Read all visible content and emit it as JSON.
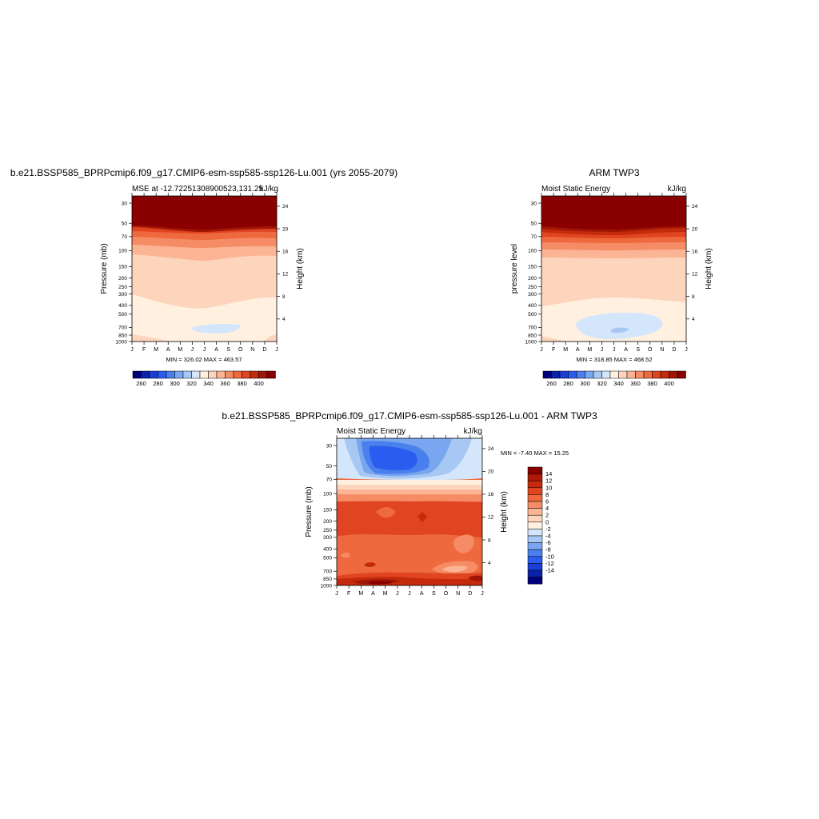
{
  "chart_data": [
    {
      "id": "model",
      "type": "heatmap",
      "title": "b.e21.BSSP585_BPRPcmip6.f09_g17.CMIP6-esm-ssp585-ssp126-Lu.001 (yrs 2055-2079)",
      "subtitle_left": "MSE at -12.72251308900523,131.25",
      "subtitle_right": "kJ/kg",
      "ylabel": "Pressure (mb)",
      "ylabel_right": "Height (km)",
      "x_ticks": [
        "J",
        "F",
        "M",
        "A",
        "M",
        "J",
        "J",
        "A",
        "S",
        "O",
        "N",
        "D",
        "J"
      ],
      "y_ticks": [
        "30",
        "50",
        "70",
        "100",
        "150",
        "200",
        "250",
        "300",
        "400",
        "500",
        "700",
        "850",
        "1000"
      ],
      "y_ticks_right": [
        "24",
        "20",
        "16",
        "12",
        "8",
        "4"
      ],
      "stats": "MIN = 326.02 MAX = 463.57",
      "colorbar_labels": [
        "260",
        "280",
        "300",
        "320",
        "340",
        "360",
        "380",
        "400"
      ],
      "contour_levels_kJkg": [
        250,
        260,
        270,
        280,
        290,
        300,
        310,
        320,
        330,
        340,
        350,
        360,
        370,
        380,
        390,
        400,
        410
      ]
    },
    {
      "id": "obs",
      "type": "heatmap",
      "title": "ARM TWP3",
      "subtitle_left": "Moist Static Energy",
      "subtitle_right": "kJ/kg",
      "ylabel": "pressure level",
      "ylabel_right": "Height (km)",
      "x_ticks": [
        "J",
        "F",
        "M",
        "A",
        "M",
        "J",
        "J",
        "A",
        "S",
        "O",
        "N",
        "D",
        "J"
      ],
      "y_ticks": [
        "30",
        "50",
        "70",
        "100",
        "150",
        "200",
        "250",
        "300",
        "400",
        "500",
        "700",
        "850",
        "1000"
      ],
      "y_ticks_right": [
        "24",
        "20",
        "16",
        "12",
        "8",
        "4"
      ],
      "stats": "MIN = 318.85 MAX = 468.52",
      "colorbar_labels": [
        "260",
        "280",
        "300",
        "320",
        "340",
        "360",
        "380",
        "400"
      ],
      "contour_levels_kJkg": [
        250,
        260,
        270,
        280,
        290,
        300,
        310,
        320,
        330,
        340,
        350,
        360,
        370,
        380,
        390,
        400,
        410
      ]
    },
    {
      "id": "diff",
      "type": "heatmap",
      "title": "b.e21.BSSP585_BPRPcmip6.f09_g17.CMIP6-esm-ssp585-ssp126-Lu.001 - ARM TWP3",
      "subtitle_left": "Moist Static Energy",
      "subtitle_right": "kJ/kg",
      "ylabel": "Pressure (mb)",
      "ylabel_right": "Height (km)",
      "x_ticks": [
        "J",
        "F",
        "M",
        "A",
        "M",
        "J",
        "J",
        "A",
        "S",
        "O",
        "N",
        "D",
        "J"
      ],
      "y_ticks": [
        "30",
        "50",
        "70",
        "100",
        "150",
        "200",
        "250",
        "300",
        "400",
        "500",
        "700",
        "850",
        "1000"
      ],
      "y_ticks_right": [
        "24",
        "20",
        "16",
        "12",
        "8",
        "4"
      ],
      "stats": "MIN =  -7.40 MAX =  15.25",
      "colorbar_labels": [
        "14",
        "12",
        "10",
        "8",
        "6",
        "4",
        "2",
        "0",
        "-2",
        "-4",
        "-6",
        "-8",
        "-10",
        "-12",
        "-14"
      ]
    }
  ],
  "colors": {
    "scale": [
      "#00007a",
      "#0a22a8",
      "#1a3fd6",
      "#2c5cef",
      "#4a80ee",
      "#7aa6ef",
      "#a8c8f4",
      "#d4e6fb",
      "#fff0e0",
      "#fdd5bd",
      "#fbb494",
      "#f58c66",
      "#ee6a3e",
      "#e04420",
      "#c42a0c",
      "#a01606",
      "#8a0000"
    ],
    "diff_scale": [
      "#8a0000",
      "#b01808",
      "#c8280c",
      "#e04420",
      "#ee6a3e",
      "#f58c66",
      "#fbb494",
      "#fdd5bd",
      "#fff0e0",
      "#d4e6fb",
      "#a8c8f4",
      "#7aa6ef",
      "#4a80ee",
      "#2c5cef",
      "#1a3fd6",
      "#0a22a8",
      "#00007a"
    ]
  }
}
